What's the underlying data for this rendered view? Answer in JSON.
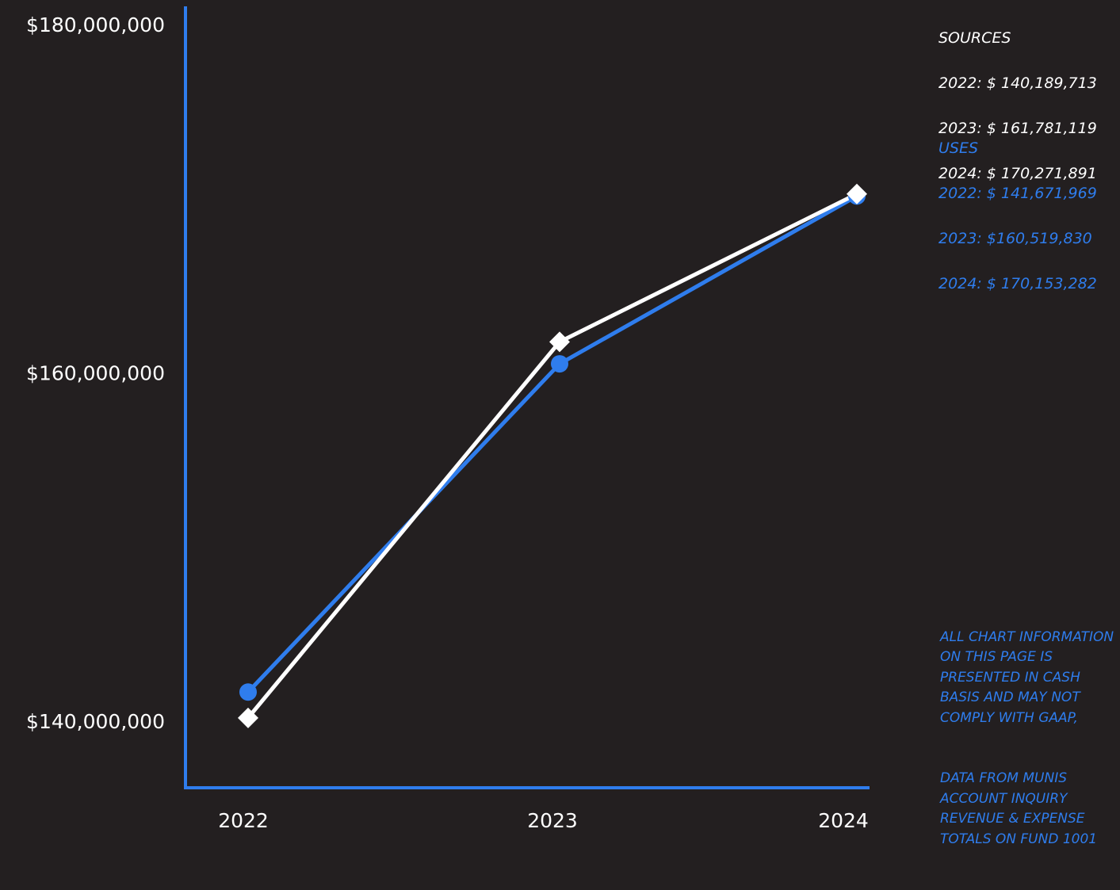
{
  "chart_data": {
    "type": "line",
    "title": "",
    "xlabel": "",
    "ylabel": "",
    "categories": [
      "2022",
      "2023",
      "2024"
    ],
    "ylim": [
      136000000,
      180000000
    ],
    "yticks": [
      140000000,
      160000000,
      180000000
    ],
    "ytick_labels": [
      "$140,000,000",
      "$160,000,000",
      "$180,000,000"
    ],
    "grid": false,
    "legend": "none",
    "series": [
      {
        "name": "USES",
        "values": [
          141671969,
          160519830,
          170153282
        ],
        "color": "#2f7ded",
        "marker": "circle"
      },
      {
        "name": "SOURCES",
        "values": [
          140189713,
          161781119,
          170271891
        ],
        "color": "#ffffff",
        "marker": "diamond"
      }
    ],
    "axis_color": "#2f7ded",
    "background": "#231f20"
  },
  "sidebar": {
    "sources_heading": "SOURCES",
    "sources_lines": [
      "2022: $ 140,189,713",
      "2023: $ 161,781,119",
      "2024: $ 170,271,891"
    ],
    "uses_heading": "USES",
    "uses_lines": [
      "2022: $ 141,671,969",
      "2023: $160,519,830",
      "2024: $ 170,153,282"
    ],
    "note_lines": [
      "ALL CHART INFORMATION ON THIS PAGE IS PRESENTED IN CASH BASIS AND MAY NOT COMPLY WITH GAAP,",
      "DATA FROM MUNIS ACCOUNT INQUIRY REVENUE & EXPENSE TOTALS ON FUND 1001"
    ]
  }
}
